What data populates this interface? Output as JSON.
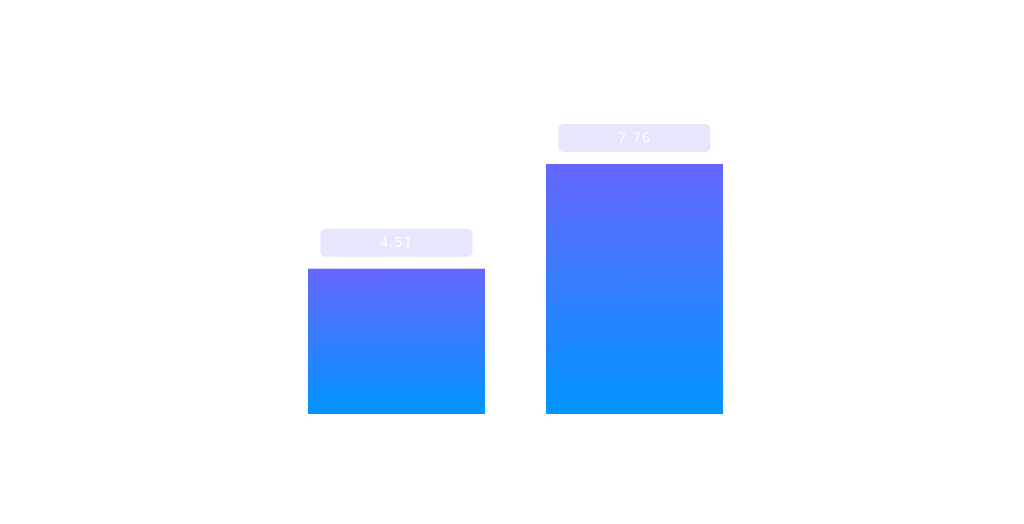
{
  "chart_data": {
    "type": "bar",
    "categories": [
      "",
      ""
    ],
    "values": [
      4.51,
      7.76
    ],
    "value_labels": [
      "4.51",
      "7.76"
    ],
    "title": "",
    "xlabel": "",
    "ylabel": "",
    "ylim": [
      0,
      7.76
    ],
    "grid": false,
    "legend": "none",
    "colors": {
      "bar_gradient_top": "#6666ff",
      "bar_gradient_bottom": "#0095ff",
      "label_background": "#e6e6fc",
      "label_text": "#ffffff",
      "background": "#ffffff"
    }
  }
}
